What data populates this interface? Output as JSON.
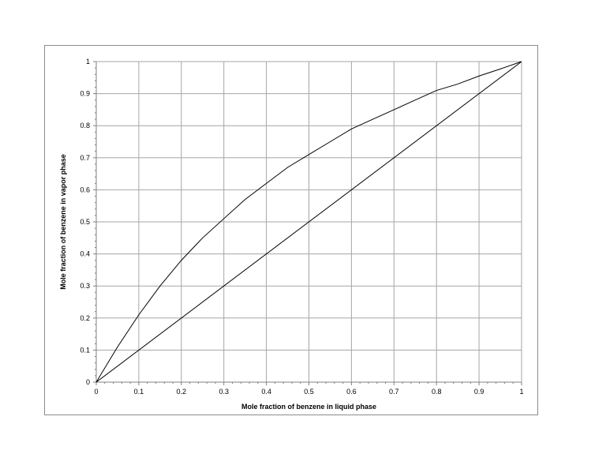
{
  "chart_data": {
    "type": "line",
    "xlabel": "Mole fraction of benzene in liquid phase",
    "ylabel": "Mole fraction of benzene in vapor phase",
    "xlim": [
      0,
      1
    ],
    "ylim": [
      0,
      1
    ],
    "x_ticks": [
      "0",
      "0.1",
      "0.2",
      "0.3",
      "0.4",
      "0.5",
      "0.6",
      "0.7",
      "0.8",
      "0.9",
      "1"
    ],
    "y_ticks": [
      "0",
      "0.1",
      "0.2",
      "0.3",
      "0.4",
      "0.5",
      "0.6",
      "0.7",
      "0.8",
      "0.9",
      "1"
    ],
    "grid": true,
    "legend": "none",
    "series": [
      {
        "x": [
          0,
          0.05,
          0.1,
          0.15,
          0.2,
          0.25,
          0.3,
          0.35,
          0.4,
          0.45,
          0.5,
          0.55,
          0.6,
          0.65,
          0.7,
          0.75,
          0.8,
          0.85,
          0.9,
          0.95,
          1
        ],
        "y": [
          0,
          0.11,
          0.21,
          0.3,
          0.38,
          0.45,
          0.51,
          0.57,
          0.62,
          0.67,
          0.71,
          0.75,
          0.79,
          0.82,
          0.85,
          0.88,
          0.91,
          0.93,
          0.955,
          0.977,
          1
        ],
        "color": "#000000"
      },
      {
        "x": [
          0,
          1
        ],
        "y": [
          0,
          1
        ],
        "color": "#000000"
      }
    ]
  }
}
